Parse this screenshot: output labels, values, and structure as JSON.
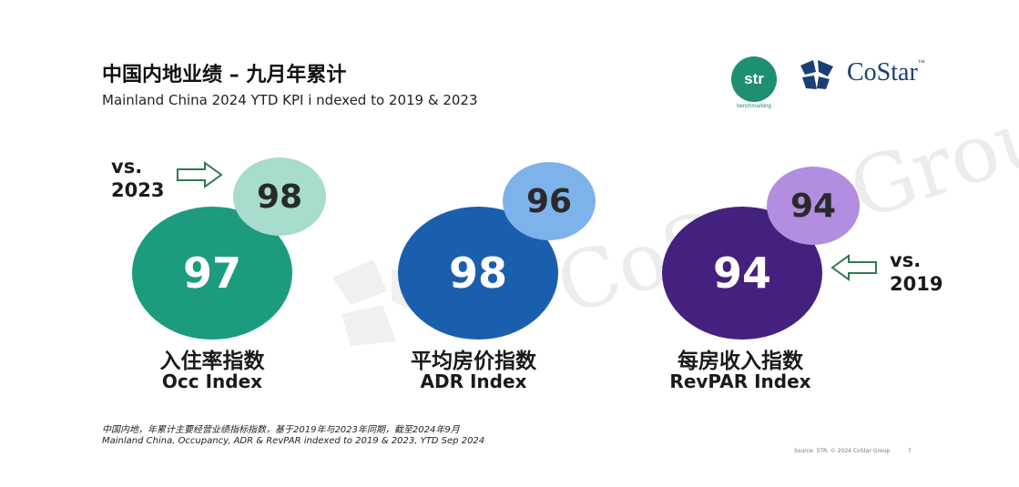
{
  "header": {
    "title_zh": "中国内地业绩 – 九月年累计",
    "title_en": "Mainland China 2024 YTD KPI i ndexed to 2019 & 2023"
  },
  "logos": {
    "str_text": "str",
    "str_sub": "benchmarking",
    "costar_text": "CoStar",
    "costar_tm": "™",
    "watermark_text": "CoStar Group"
  },
  "kpis": [
    {
      "label_zh": "入住率指数",
      "label_en": "Occ Index",
      "vs2019": "97",
      "vs2023": "98"
    },
    {
      "label_zh": "平均房价指数",
      "label_en": "ADR Index",
      "vs2019": "98",
      "vs2023": "96"
    },
    {
      "label_zh": "每房收入指数",
      "label_en": "RevPAR Index",
      "vs2019": "94",
      "vs2023": "94"
    }
  ],
  "callouts": {
    "vs2023_line1": "vs.",
    "vs2023_line2": "2023",
    "vs2019_line1": "vs.",
    "vs2019_line2": "2019"
  },
  "footer": {
    "note_zh": "中国内地，年累计主要经营业绩指标指数，基于2019年与2023年同期，截至2024年9月",
    "note_en": "Mainland China, Occupancy, ADR & RevPAR indexed to 2019 & 2023, YTD Sep 2024",
    "source": "Source: STR. © 2024 CoStar Group",
    "page_number": "7"
  },
  "colors": {
    "occ_big": "#1c9b7e",
    "occ_small": "#a8dccd",
    "adr_big": "#1a5fae",
    "adr_small": "#7db3ea",
    "revpar_big": "#44217f",
    "revpar_small": "#b18ee0",
    "costar_blue": "#1b3f75",
    "str_green": "#1f8f73"
  }
}
